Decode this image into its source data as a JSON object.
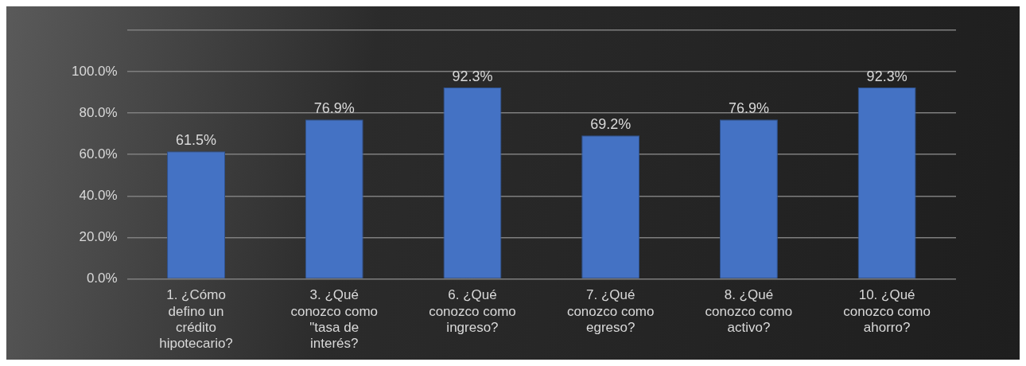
{
  "chart_data": {
    "type": "bar",
    "categories": [
      "1. ¿Cómo defino un crédito hipotecario?",
      "3. ¿Qué conozco como \"tasa de interés?",
      "6. ¿Qué conozco como ingreso?",
      "7. ¿Qué conozco como egreso?",
      "8. ¿Qué conozco como activo?",
      "10. ¿Qué conozco como ahorro?"
    ],
    "values": [
      61.5,
      76.9,
      92.3,
      69.2,
      76.9,
      92.3
    ],
    "value_labels": [
      "61.5%",
      "76.9%",
      "92.3%",
      "69.2%",
      "76.9%",
      "92.3%"
    ],
    "color": "#4472c4",
    "ylim": [
      0,
      120
    ],
    "yticks": [
      {
        "value": 0,
        "label": "0.0%"
      },
      {
        "value": 20,
        "label": "20.0%"
      },
      {
        "value": 40,
        "label": "40.0%"
      },
      {
        "value": 60,
        "label": "60.0%"
      },
      {
        "value": 80,
        "label": "80.0%"
      },
      {
        "value": 100,
        "label": "100.0%"
      },
      {
        "value": 120,
        "label": null
      }
    ],
    "grid": "y",
    "legend": false
  }
}
